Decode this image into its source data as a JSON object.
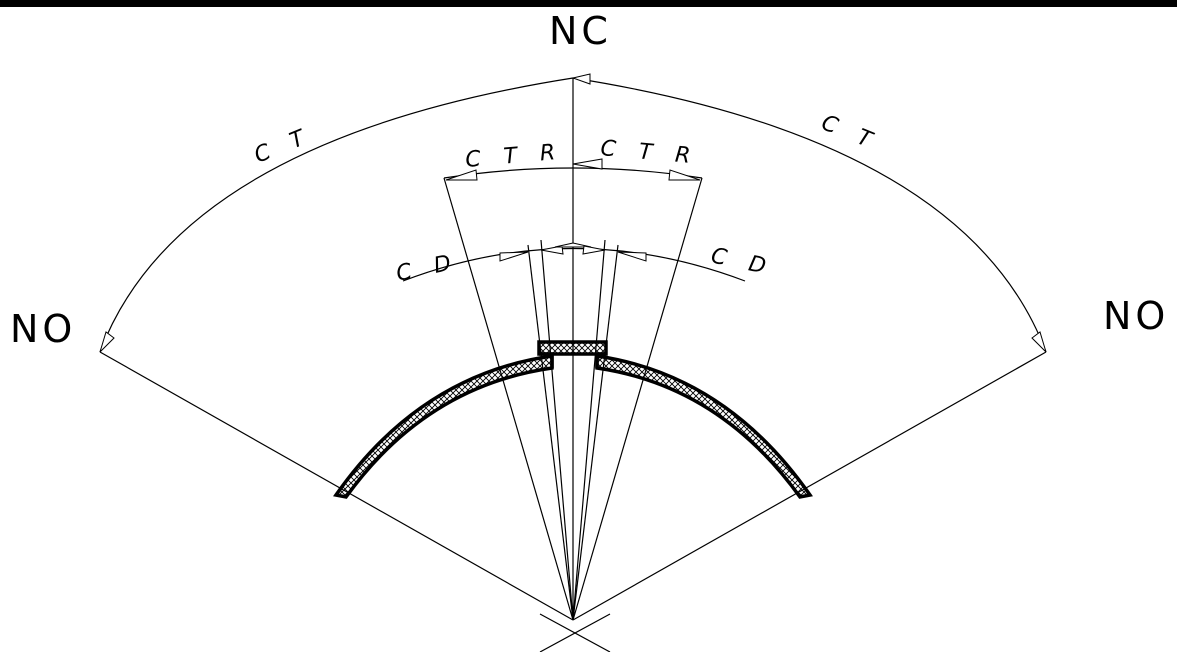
{
  "labels": {
    "top_center": "NC",
    "left_end": "NO",
    "right_end": "NO",
    "outer_arc_left": "C T",
    "outer_arc_right": "C T",
    "mid_arc_left": "C T R",
    "mid_arc_right": "C T R",
    "inner_arc_left": "C D",
    "inner_arc_right": "C D"
  }
}
